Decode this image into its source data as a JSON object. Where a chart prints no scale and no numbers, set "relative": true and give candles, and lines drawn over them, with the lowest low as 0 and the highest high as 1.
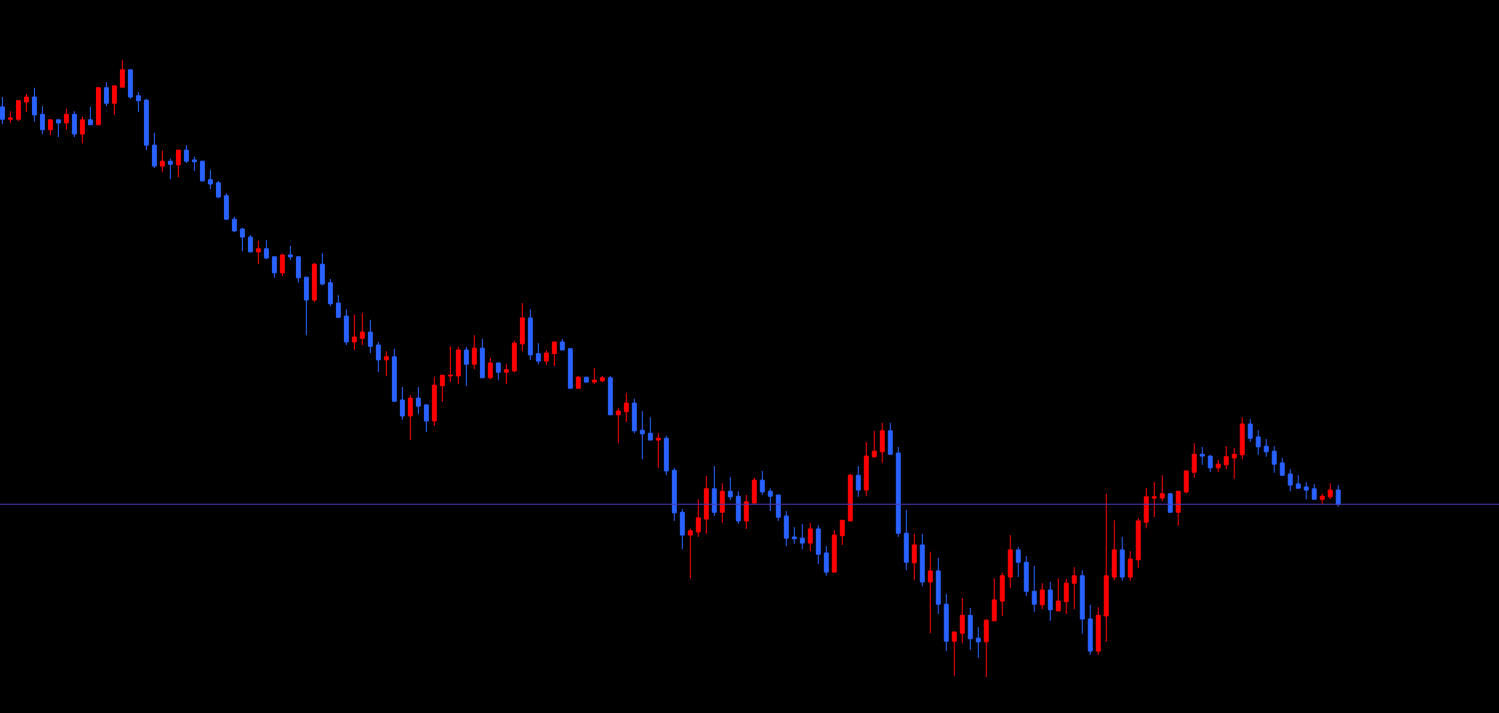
{
  "chart_data": {
    "type": "candlestick",
    "relative": true,
    "tick_labels": false,
    "categories": [
      null,
      null,
      null,
      null,
      null,
      null,
      null,
      null,
      null,
      null,
      null,
      null,
      null,
      null,
      null,
      null,
      null,
      null,
      null,
      null,
      null,
      null,
      null,
      null,
      null,
      null,
      null,
      null,
      null,
      null,
      null,
      null,
      null,
      null,
      null,
      null,
      null,
      null,
      null,
      null,
      null,
      null,
      null,
      null,
      null,
      null,
      null,
      null,
      null,
      null,
      null,
      null,
      null,
      null,
      null,
      null,
      null,
      null,
      null,
      null,
      null,
      null,
      null,
      null,
      null,
      null,
      null,
      null,
      null,
      null,
      null,
      null,
      null,
      null,
      null,
      null,
      null,
      null,
      null,
      null,
      null,
      null,
      null,
      null,
      null,
      null,
      null,
      null,
      null,
      null,
      null,
      null,
      null,
      null,
      null,
      null,
      null,
      null,
      null,
      null,
      null,
      null,
      null,
      null,
      null,
      null,
      null,
      null,
      null,
      null,
      null,
      null,
      null,
      null,
      null,
      null,
      null,
      null,
      null,
      null,
      null,
      null,
      null,
      null,
      null,
      null,
      null,
      null,
      null,
      null,
      null,
      null,
      null,
      null,
      null,
      null,
      null,
      null,
      null,
      null,
      null,
      null,
      null,
      null,
      null,
      null,
      null,
      null,
      null,
      null,
      null,
      null,
      null,
      null,
      null,
      null,
      null,
      null,
      null,
      null,
      null,
      null,
      null,
      null,
      null,
      null,
      null,
      null
    ],
    "ohlc": [
      [
        0.924,
        0.94,
        0.896,
        0.904
      ],
      [
        0.904,
        0.917,
        0.898,
        0.906
      ],
      [
        0.904,
        0.934,
        0.901,
        0.934
      ],
      [
        0.932,
        0.945,
        0.916,
        0.94
      ],
      [
        0.94,
        0.955,
        0.9,
        0.911
      ],
      [
        0.912,
        0.925,
        0.88,
        0.887
      ],
      [
        0.887,
        0.903,
        0.878,
        0.903
      ],
      [
        0.903,
        0.903,
        0.875,
        0.898
      ],
      [
        0.898,
        0.921,
        0.887,
        0.912
      ],
      [
        0.912,
        0.917,
        0.875,
        0.88
      ],
      [
        0.88,
        0.908,
        0.865,
        0.903
      ],
      [
        0.903,
        0.924,
        0.895,
        0.895
      ],
      [
        0.895,
        0.955,
        0.895,
        0.955
      ],
      [
        0.955,
        0.964,
        0.925,
        0.93
      ],
      [
        0.93,
        0.959,
        0.911,
        0.958
      ],
      [
        0.956,
        1,
        0.956,
        0.984
      ],
      [
        0.984,
        0.985,
        0.937,
        0.94
      ],
      [
        0.942,
        0.948,
        0.916,
        0.934
      ],
      [
        0.935,
        0.937,
        0.854,
        0.862
      ],
      [
        0.862,
        0.882,
        0.825,
        0.828
      ],
      [
        0.828,
        0.853,
        0.818,
        0.836
      ],
      [
        0.836,
        0.84,
        0.807,
        0.831
      ],
      [
        0.83,
        0.854,
        0.81,
        0.854
      ],
      [
        0.854,
        0.862,
        0.833,
        0.836
      ],
      [
        0.838,
        0.843,
        0.82,
        0.835
      ],
      [
        0.836,
        0.836,
        0.804,
        0.804
      ],
      [
        0.806,
        0.822,
        0.791,
        0.799
      ],
      [
        0.801,
        0.804,
        0.776,
        0.778
      ],
      [
        0.78,
        0.784,
        0.741,
        0.742
      ],
      [
        0.742,
        0.746,
        0.721,
        0.723
      ],
      [
        0.726,
        0.728,
        0.69,
        0.713
      ],
      [
        0.713,
        0.716,
        0.689,
        0.689
      ],
      [
        0.689,
        0.707,
        0.669,
        0.694
      ],
      [
        0.694,
        0.708,
        0.677,
        0.679
      ],
      [
        0.681,
        0.681,
        0.647,
        0.655
      ],
      [
        0.655,
        0.686,
        0.65,
        0.684
      ],
      [
        0.684,
        0.699,
        0.676,
        0.681
      ],
      [
        0.681,
        0.682,
        0.639,
        0.647
      ],
      [
        0.648,
        0.648,
        0.554,
        0.611
      ],
      [
        0.611,
        0.671,
        0.608,
        0.669
      ],
      [
        0.669,
        0.687,
        0.635,
        0.637
      ],
      [
        0.639,
        0.645,
        0.601,
        0.605
      ],
      [
        0.606,
        0.619,
        0.582,
        0.583
      ],
      [
        0.585,
        0.596,
        0.538,
        0.543
      ],
      [
        0.543,
        0.587,
        0.53,
        0.551
      ],
      [
        0.549,
        0.59,
        0.538,
        0.559
      ],
      [
        0.559,
        0.579,
        0.525,
        0.536
      ],
      [
        0.538,
        0.543,
        0.494,
        0.514
      ],
      [
        0.514,
        0.528,
        0.488,
        0.519
      ],
      [
        0.519,
        0.532,
        0.446,
        0.447
      ],
      [
        0.449,
        0.47,
        0.417,
        0.423
      ],
      [
        0.423,
        0.457,
        0.384,
        0.452
      ],
      [
        0.452,
        0.47,
        0.426,
        0.439
      ],
      [
        0.441,
        0.442,
        0.397,
        0.415
      ],
      [
        0.415,
        0.486,
        0.407,
        0.473
      ],
      [
        0.472,
        0.489,
        0.446,
        0.489
      ],
      [
        0.488,
        0.536,
        0.478,
        0.489
      ],
      [
        0.488,
        0.535,
        0.475,
        0.53
      ],
      [
        0.53,
        0.535,
        0.472,
        0.507
      ],
      [
        0.507,
        0.554,
        0.499,
        0.533
      ],
      [
        0.533,
        0.548,
        0.485,
        0.485
      ],
      [
        0.485,
        0.517,
        0.483,
        0.509
      ],
      [
        0.509,
        0.509,
        0.481,
        0.494
      ],
      [
        0.494,
        0.507,
        0.475,
        0.498
      ],
      [
        0.496,
        0.545,
        0.494,
        0.541
      ],
      [
        0.54,
        0.606,
        0.528,
        0.582
      ],
      [
        0.582,
        0.596,
        0.514,
        0.522
      ],
      [
        0.524,
        0.541,
        0.507,
        0.512
      ],
      [
        0.512,
        0.53,
        0.506,
        0.525
      ],
      [
        0.524,
        0.543,
        0.504,
        0.543
      ],
      [
        0.543,
        0.548,
        0.53,
        0.53
      ],
      [
        0.532,
        0.533,
        0.468,
        0.468
      ],
      [
        0.468,
        0.488,
        0.467,
        0.486
      ],
      [
        0.486,
        0.486,
        0.477,
        0.478
      ],
      [
        0.478,
        0.501,
        0.475,
        0.481
      ],
      [
        0.48,
        0.488,
        0.478,
        0.485
      ],
      [
        0.485,
        0.488,
        0.425,
        0.425
      ],
      [
        0.425,
        0.436,
        0.379,
        0.431
      ],
      [
        0.43,
        0.46,
        0.413,
        0.444
      ],
      [
        0.444,
        0.451,
        0.395,
        0.399
      ],
      [
        0.4,
        0.431,
        0.353,
        0.394
      ],
      [
        0.395,
        0.421,
        0.384,
        0.384
      ],
      [
        0.384,
        0.395,
        0.339,
        0.387
      ],
      [
        0.387,
        0.391,
        0.327,
        0.334
      ],
      [
        0.335,
        0.339,
        0.253,
        0.266
      ],
      [
        0.267,
        0.272,
        0.207,
        0.23
      ],
      [
        0.23,
        0.24,
        0.16,
        0.237
      ],
      [
        0.235,
        0.288,
        0.227,
        0.258
      ],
      [
        0.256,
        0.326,
        0.232,
        0.305
      ],
      [
        0.305,
        0.342,
        0.261,
        0.267
      ],
      [
        0.267,
        0.314,
        0.25,
        0.301
      ],
      [
        0.301,
        0.324,
        0.287,
        0.292
      ],
      [
        0.293,
        0.301,
        0.248,
        0.253
      ],
      [
        0.253,
        0.295,
        0.24,
        0.284
      ],
      [
        0.282,
        0.323,
        0.28,
        0.319
      ],
      [
        0.319,
        0.334,
        0.295,
        0.3
      ],
      [
        0.301,
        0.306,
        0.269,
        0.293
      ],
      [
        0.295,
        0.295,
        0.253,
        0.259
      ],
      [
        0.261,
        0.269,
        0.212,
        0.225
      ],
      [
        0.227,
        0.243,
        0.216,
        0.224
      ],
      [
        0.225,
        0.248,
        0.207,
        0.217
      ],
      [
        0.217,
        0.25,
        0.204,
        0.24
      ],
      [
        0.24,
        0.246,
        0.183,
        0.199
      ],
      [
        0.201,
        0.212,
        0.164,
        0.17
      ],
      [
        0.17,
        0.238,
        0.17,
        0.23
      ],
      [
        0.229,
        0.254,
        0.214,
        0.254
      ],
      [
        0.253,
        0.329,
        0.253,
        0.327
      ],
      [
        0.327,
        0.342,
        0.292,
        0.303
      ],
      [
        0.303,
        0.381,
        0.293,
        0.358
      ],
      [
        0.357,
        0.399,
        0.355,
        0.366
      ],
      [
        0.365,
        0.412,
        0.347,
        0.399
      ],
      [
        0.399,
        0.412,
        0.361,
        0.361
      ],
      [
        0.363,
        0.373,
        0.227,
        0.233
      ],
      [
        0.233,
        0.271,
        0.173,
        0.186
      ],
      [
        0.185,
        0.232,
        0.157,
        0.214
      ],
      [
        0.214,
        0.232,
        0.147,
        0.154
      ],
      [
        0.154,
        0.203,
        0.071,
        0.172
      ],
      [
        0.172,
        0.193,
        0.102,
        0.118
      ],
      [
        0.118,
        0.135,
        0.042,
        0.058
      ],
      [
        0.058,
        0.073,
        0.002,
        0.073
      ],
      [
        0.071,
        0.128,
        0.055,
        0.1
      ],
      [
        0.1,
        0.112,
        0.044,
        0.062
      ],
      [
        0.063,
        0.081,
        0.031,
        0.057
      ],
      [
        0.057,
        0.094,
        0,
        0.092
      ],
      [
        0.091,
        0.16,
        0.091,
        0.125
      ],
      [
        0.123,
        0.169,
        0.099,
        0.164
      ],
      [
        0.162,
        0.23,
        0.144,
        0.206
      ],
      [
        0.206,
        0.211,
        0.162,
        0.186
      ],
      [
        0.186,
        0.196,
        0.131,
        0.139
      ],
      [
        0.139,
        0.18,
        0.105,
        0.118
      ],
      [
        0.117,
        0.152,
        0.11,
        0.141
      ],
      [
        0.141,
        0.154,
        0.091,
        0.109
      ],
      [
        0.107,
        0.16,
        0.107,
        0.123
      ],
      [
        0.122,
        0.159,
        0.102,
        0.152
      ],
      [
        0.152,
        0.178,
        0.11,
        0.164
      ],
      [
        0.164,
        0.173,
        0.07,
        0.094
      ],
      [
        0.094,
        0.117,
        0.036,
        0.042
      ],
      [
        0.042,
        0.113,
        0.036,
        0.1
      ],
      [
        0.099,
        0.297,
        0.057,
        0.164
      ],
      [
        0.162,
        0.254,
        0.157,
        0.206
      ],
      [
        0.206,
        0.227,
        0.156,
        0.162
      ],
      [
        0.162,
        0.204,
        0.156,
        0.191
      ],
      [
        0.19,
        0.258,
        0.177,
        0.253
      ],
      [
        0.251,
        0.306,
        0.241,
        0.292
      ],
      [
        0.29,
        0.316,
        0.259,
        0.292
      ],
      [
        0.29,
        0.327,
        0.285,
        0.297
      ],
      [
        0.297,
        0.298,
        0.267,
        0.267
      ],
      [
        0.267,
        0.301,
        0.245,
        0.301
      ],
      [
        0.3,
        0.335,
        0.298,
        0.334
      ],
      [
        0.332,
        0.379,
        0.323,
        0.361
      ],
      [
        0.361,
        0.373,
        0.344,
        0.358
      ],
      [
        0.358,
        0.36,
        0.332,
        0.339
      ],
      [
        0.339,
        0.352,
        0.332,
        0.345
      ],
      [
        0.344,
        0.374,
        0.337,
        0.357
      ],
      [
        0.355,
        0.371,
        0.321,
        0.361
      ],
      [
        0.36,
        0.421,
        0.353,
        0.41
      ],
      [
        0.41,
        0.418,
        0.381,
        0.387
      ],
      [
        0.389,
        0.4,
        0.36,
        0.373
      ],
      [
        0.374,
        0.386,
        0.357,
        0.365
      ],
      [
        0.366,
        0.374,
        0.331,
        0.345
      ],
      [
        0.347,
        0.355,
        0.326,
        0.327
      ],
      [
        0.329,
        0.337,
        0.301,
        0.311
      ],
      [
        0.313,
        0.327,
        0.306,
        0.306
      ],
      [
        0.308,
        0.316,
        0.288,
        0.303
      ],
      [
        0.305,
        0.313,
        0.288,
        0.288
      ],
      [
        0.288,
        0.297,
        0.28,
        0.293
      ],
      [
        0.292,
        0.314,
        0.288,
        0.303
      ],
      [
        0.303,
        0.311,
        0.276,
        0.28
      ]
    ],
    "colors": [
      "#2962ff",
      "#ff0000",
      "#ff0000",
      "#ff0000",
      "#2962ff",
      "#2962ff",
      "#ff0000",
      "#2962ff",
      "#ff0000",
      "#2962ff",
      "#ff0000",
      "#2962ff",
      "#ff0000",
      "#2962ff",
      "#ff0000",
      "#ff0000",
      "#2962ff",
      "#2962ff",
      "#2962ff",
      "#2962ff",
      "#ff0000",
      "#2962ff",
      "#ff0000",
      "#2962ff",
      "#2962ff",
      "#2962ff",
      "#2962ff",
      "#2962ff",
      "#2962ff",
      "#2962ff",
      "#2962ff",
      "#2962ff",
      "#ff0000",
      "#2962ff",
      "#2962ff",
      "#ff0000",
      "#2962ff",
      "#2962ff",
      "#2962ff",
      "#ff0000",
      "#2962ff",
      "#2962ff",
      "#2962ff",
      "#2962ff",
      "#ff0000",
      "#ff0000",
      "#2962ff",
      "#2962ff",
      "#ff0000",
      "#2962ff",
      "#2962ff",
      "#ff0000",
      "#2962ff",
      "#2962ff",
      "#ff0000",
      "#ff0000",
      "#ff0000",
      "#ff0000",
      "#2962ff",
      "#ff0000",
      "#2962ff",
      "#ff0000",
      "#2962ff",
      "#ff0000",
      "#ff0000",
      "#ff0000",
      "#2962ff",
      "#2962ff",
      "#ff0000",
      "#ff0000",
      "#2962ff",
      "#2962ff",
      "#ff0000",
      "#2962ff",
      "#ff0000",
      "#ff0000",
      "#2962ff",
      "#ff0000",
      "#ff0000",
      "#2962ff",
      "#2962ff",
      "#2962ff",
      "#ff0000",
      "#2962ff",
      "#2962ff",
      "#2962ff",
      "#ff0000",
      "#ff0000",
      "#ff0000",
      "#2962ff",
      "#ff0000",
      "#2962ff",
      "#2962ff",
      "#ff0000",
      "#ff0000",
      "#2962ff",
      "#2962ff",
      "#2962ff",
      "#2962ff",
      "#2962ff",
      "#2962ff",
      "#ff0000",
      "#2962ff",
      "#2962ff",
      "#ff0000",
      "#ff0000",
      "#ff0000",
      "#2962ff",
      "#ff0000",
      "#ff0000",
      "#ff0000",
      "#2962ff",
      "#2962ff",
      "#2962ff",
      "#ff0000",
      "#2962ff",
      "#ff0000",
      "#2962ff",
      "#2962ff",
      "#ff0000",
      "#ff0000",
      "#2962ff",
      "#2962ff",
      "#ff0000",
      "#ff0000",
      "#ff0000",
      "#ff0000",
      "#2962ff",
      "#2962ff",
      "#2962ff",
      "#ff0000",
      "#2962ff",
      "#ff0000",
      "#ff0000",
      "#ff0000",
      "#2962ff",
      "#2962ff",
      "#ff0000",
      "#ff0000",
      "#ff0000",
      "#2962ff",
      "#ff0000",
      "#ff0000",
      "#ff0000",
      "#ff0000",
      "#ff0000",
      "#2962ff",
      "#ff0000",
      "#ff0000",
      "#ff0000",
      "#2962ff",
      "#2962ff",
      "#ff0000",
      "#ff0000",
      "#ff0000",
      "#ff0000",
      "#2962ff",
      "#2962ff",
      "#2962ff",
      "#2962ff",
      "#2962ff",
      "#2962ff",
      "#2962ff",
      "#2962ff",
      "#2962ff",
      "#ff0000",
      "#ff0000",
      "#2962ff"
    ],
    "ref_lines": [
      {
        "axis": "y",
        "value": 0.28,
        "color": "#4b3bb5"
      }
    ]
  }
}
